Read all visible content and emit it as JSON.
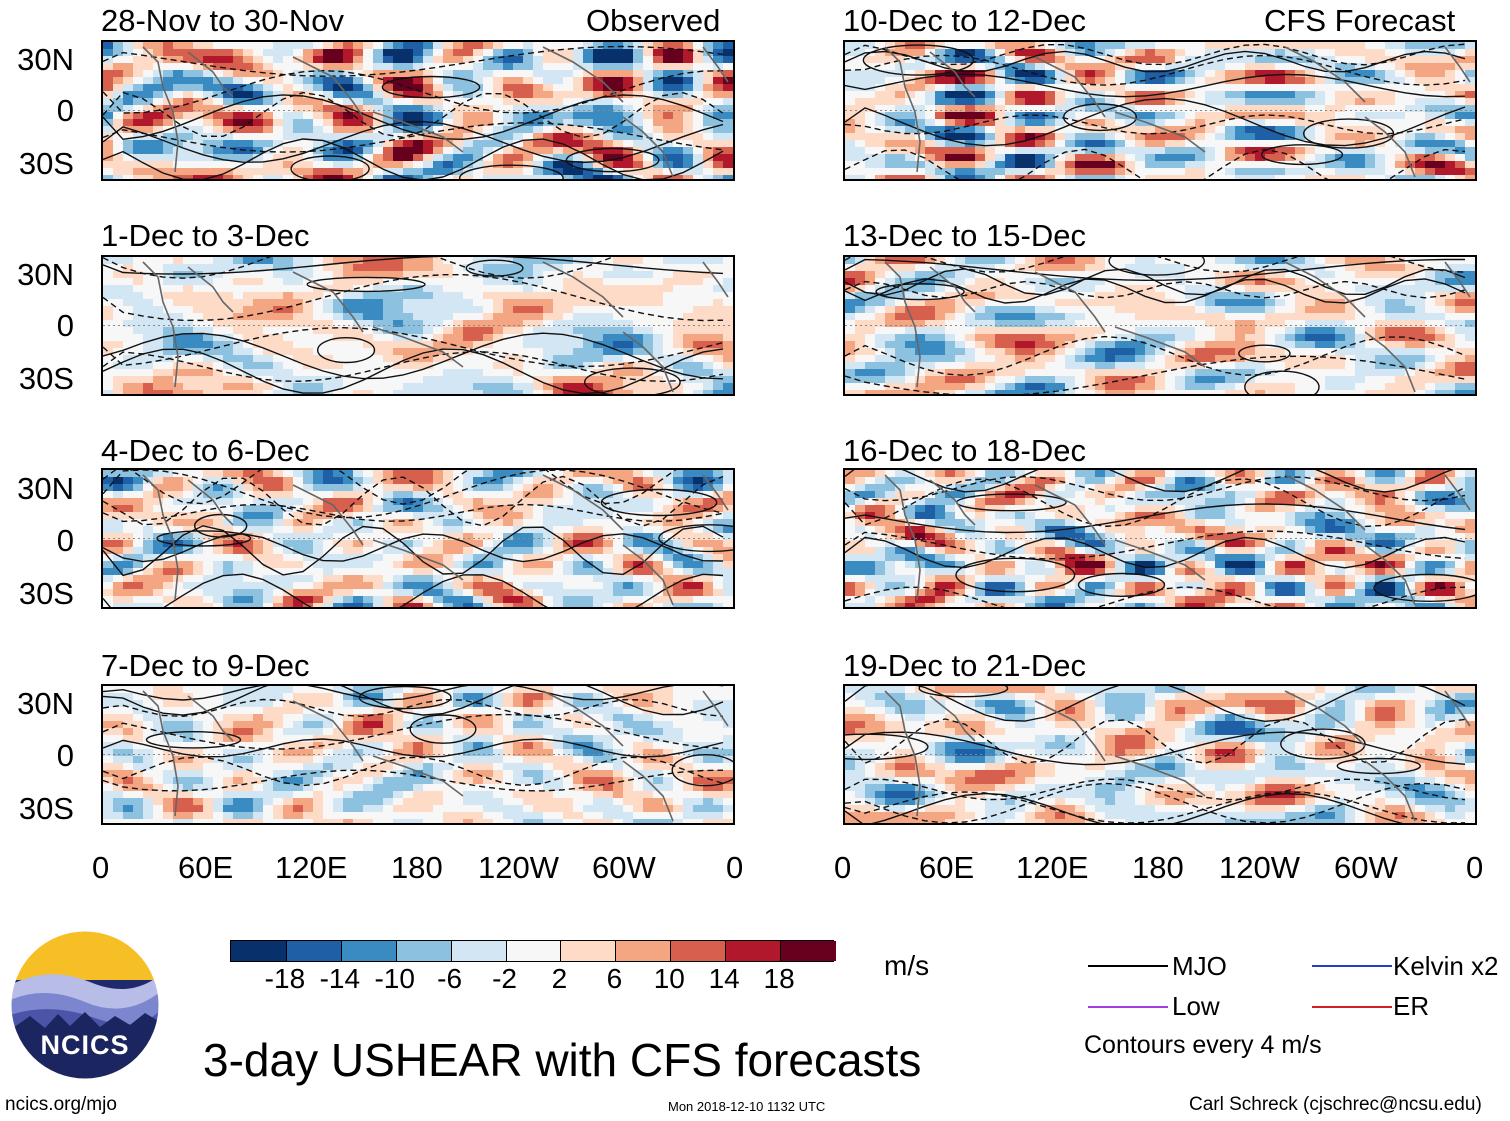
{
  "panels_observed": [
    {
      "label": "28-Nov to 30-Nov",
      "tag": "Observed"
    },
    {
      "label": "1-Dec to 3-Dec",
      "tag": ""
    },
    {
      "label": "4-Dec to 6-Dec",
      "tag": ""
    },
    {
      "label": "7-Dec to 9-Dec",
      "tag": ""
    }
  ],
  "panels_forecast": [
    {
      "label": "10-Dec to 12-Dec",
      "tag": "CFS Forecast"
    },
    {
      "label": "13-Dec to 15-Dec",
      "tag": ""
    },
    {
      "label": "16-Dec to 18-Dec",
      "tag": ""
    },
    {
      "label": "19-Dec to 21-Dec",
      "tag": ""
    }
  ],
  "lat_labels": [
    "30N",
    "0",
    "30S"
  ],
  "lon_labels": [
    "0",
    "60E",
    "120E",
    "180",
    "120W",
    "60W",
    "0"
  ],
  "colorbar": {
    "colors": [
      "#08306b",
      "#1f5fa6",
      "#3a8bc2",
      "#8cc2e0",
      "#d2e6f3",
      "#f7f7f7",
      "#fddbc7",
      "#f4a582",
      "#d6604d",
      "#b2182b",
      "#67001f"
    ],
    "tick_labels": [
      "-18",
      "-14",
      "-10",
      "-6",
      "-2",
      "2",
      "6",
      "10",
      "14",
      "18"
    ],
    "units": "m/s"
  },
  "legend": {
    "items": [
      {
        "label": "MJO",
        "color": "#000000"
      },
      {
        "label": "Kelvin x2",
        "color": "#2040c0"
      },
      {
        "label": "Low",
        "color": "#a040e0"
      },
      {
        "label": "ER",
        "color": "#d02020"
      }
    ],
    "note": "Contours every 4 m/s"
  },
  "logo_text": "NCICS",
  "title": "3-day USHEAR with CFS forecasts",
  "footer": {
    "left": "ncics.org/mjo",
    "center": "Mon 2018-12-10 1132 UTC",
    "right": "Carl Schreck (cjschrec@ncsu.edu)"
  }
}
